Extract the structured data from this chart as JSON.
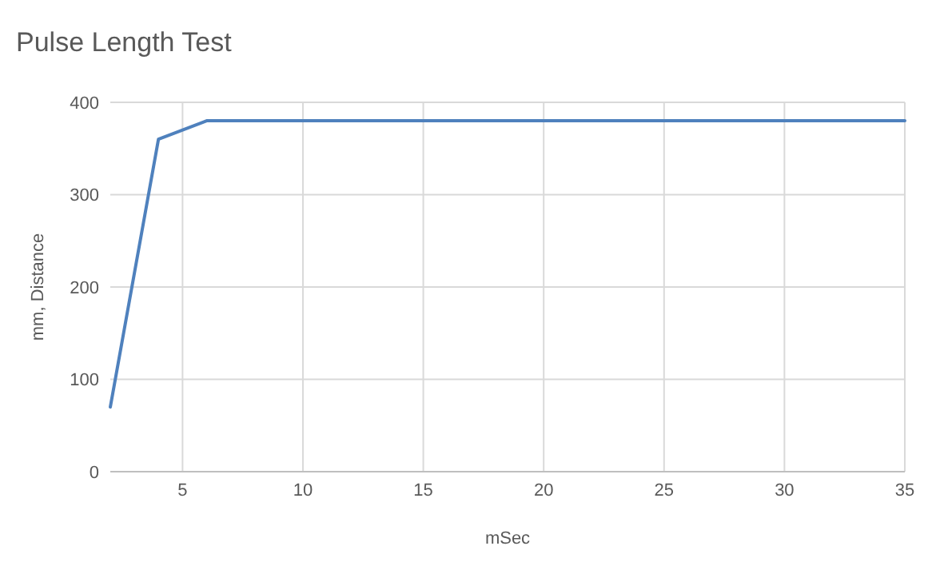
{
  "chart_data": {
    "type": "line",
    "title": "Pulse Length Test",
    "xlabel": "mSec",
    "ylabel": "mm, Distance",
    "x": [
      2,
      4,
      6,
      35
    ],
    "series": [
      {
        "color": "#4f81bd",
        "values": [
          70,
          360,
          380,
          380
        ]
      }
    ],
    "xlim": [
      2,
      35
    ],
    "xticks": [
      5,
      10,
      15,
      20,
      25,
      30,
      35
    ],
    "ylim": [
      0,
      400
    ],
    "yticks": [
      0,
      100,
      200,
      300,
      400
    ],
    "grid": true,
    "marker": "none",
    "line_style": "solid"
  }
}
